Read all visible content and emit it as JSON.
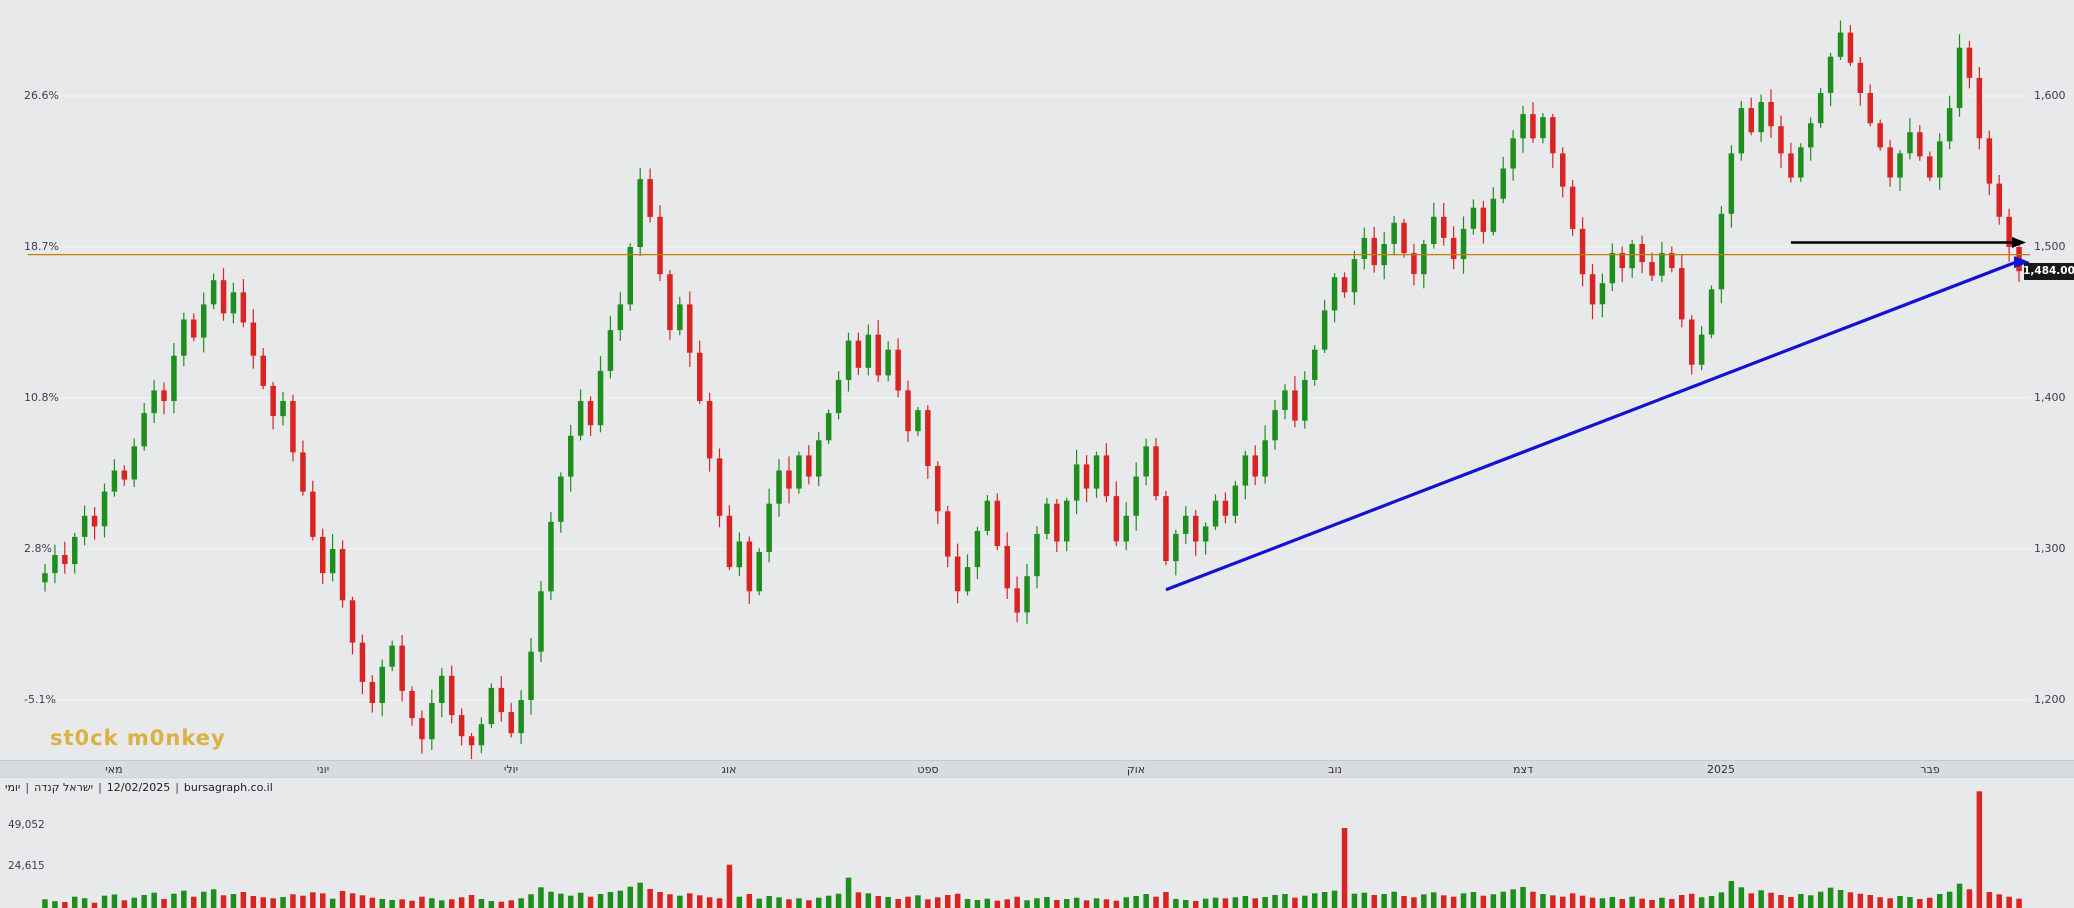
{
  "watermark": "st0ck m0nkey",
  "info_bar": {
    "parts": [
      "יומי",
      "ישראל קנדה",
      "12/02/2025",
      "bursagraph.co.il"
    ],
    "separator": "|"
  },
  "price_tag": {
    "value": "1,484.00"
  },
  "colors": {
    "up": "#1e8e1e",
    "down": "#d92424",
    "trendline": "#1212cf",
    "horizontal_line": "#bf7e10",
    "resistance_line": "#000000",
    "tag_bg": "#17181a",
    "tag_text": "#ffffff"
  },
  "chart_data": {
    "type": "candlestick",
    "symbol": "ישראל קנדה",
    "timeframe": "יומי",
    "date": "12/02/2025",
    "source": "bursagraph.co.il",
    "last_price": 1484.0,
    "price_axis_range": {
      "min": 1150,
      "max": 1660
    },
    "left_axis_ticks": [
      {
        "label": "26.6%",
        "price": 1600
      },
      {
        "label": "18.7%",
        "price": 1500
      },
      {
        "label": "10.8%",
        "price": 1400
      },
      {
        "label": "2.8%",
        "price": 1300
      },
      {
        "label": "-5.1%",
        "price": 1200
      }
    ],
    "right_axis_ticks": [
      {
        "label": "1,600",
        "price": 1600
      },
      {
        "label": "1,500",
        "price": 1500
      },
      {
        "label": "1,400",
        "price": 1400
      },
      {
        "label": "1,300",
        "price": 1300
      },
      {
        "label": "1,200",
        "price": 1200
      }
    ],
    "x_axis_labels": [
      {
        "label": "מאי",
        "day": 7
      },
      {
        "label": "יוני",
        "day": 28
      },
      {
        "label": "יולי",
        "day": 47
      },
      {
        "label": "אוג",
        "day": 69
      },
      {
        "label": "ספט",
        "day": 89
      },
      {
        "label": "אוק",
        "day": 110
      },
      {
        "label": "נוב",
        "day": 130
      },
      {
        "label": "דצמ",
        "day": 149
      },
      {
        "label": "2025",
        "day": 169
      },
      {
        "label": "פבר",
        "day": 190
      }
    ],
    "volume_axis_ticks": [
      {
        "label": "49,052",
        "value": 49052
      },
      {
        "label": "24,615",
        "value": 24615
      }
    ],
    "annotations": {
      "horizontal_line": {
        "price": 1495
      },
      "resistance_line": {
        "price": 1503,
        "from_day": 176
      },
      "trendline": {
        "from": {
          "day": 113,
          "price": 1273
        },
        "to_price": 1490
      }
    },
    "closes": [
      1284,
      1296,
      1290,
      1308,
      1322,
      1315,
      1338,
      1352,
      1346,
      1368,
      1390,
      1405,
      1398,
      1428,
      1452,
      1440,
      1462,
      1478,
      1456,
      1470,
      1450,
      1428,
      1408,
      1388,
      1398,
      1364,
      1338,
      1308,
      1284,
      1300,
      1266,
      1238,
      1212,
      1198,
      1222,
      1236,
      1206,
      1188,
      1174,
      1198,
      1216,
      1190,
      1176,
      1170,
      1184,
      1208,
      1192,
      1178,
      1200,
      1232,
      1272,
      1318,
      1348,
      1375,
      1398,
      1382,
      1418,
      1445,
      1462,
      1500,
      1545,
      1520,
      1482,
      1445,
      1462,
      1430,
      1398,
      1360,
      1322,
      1288,
      1305,
      1272,
      1298,
      1330,
      1352,
      1340,
      1362,
      1348,
      1372,
      1390,
      1412,
      1438,
      1420,
      1442,
      1415,
      1432,
      1405,
      1378,
      1392,
      1355,
      1325,
      1295,
      1272,
      1288,
      1312,
      1332,
      1302,
      1274,
      1258,
      1282,
      1310,
      1330,
      1305,
      1332,
      1356,
      1340,
      1362,
      1335,
      1305,
      1322,
      1348,
      1368,
      1335,
      1292,
      1310,
      1322,
      1305,
      1315,
      1332,
      1322,
      1342,
      1362,
      1348,
      1372,
      1392,
      1405,
      1385,
      1412,
      1432,
      1458,
      1480,
      1470,
      1492,
      1506,
      1488,
      1502,
      1516,
      1496,
      1482,
      1502,
      1520,
      1506,
      1492,
      1512,
      1526,
      1510,
      1532,
      1552,
      1572,
      1588,
      1572,
      1586,
      1562,
      1540,
      1512,
      1482,
      1462,
      1476,
      1496,
      1486,
      1502,
      1490,
      1481,
      1496,
      1486,
      1452,
      1422,
      1442,
      1472,
      1522,
      1562,
      1592,
      1576,
      1596,
      1580,
      1562,
      1546,
      1566,
      1582,
      1602,
      1626,
      1642,
      1622,
      1602,
      1582,
      1566,
      1546,
      1562,
      1576,
      1560,
      1546,
      1570,
      1592,
      1632,
      1612,
      1572,
      1542,
      1520,
      1500,
      1484
    ],
    "volumes": [
      5200,
      4100,
      3600,
      6800,
      5900,
      3200,
      7400,
      8100,
      4600,
      6200,
      7800,
      9200,
      5400,
      8600,
      10400,
      6800,
      9800,
      11200,
      7600,
      8400,
      9600,
      7200,
      6400,
      5800,
      6600,
      8200,
      7400,
      9400,
      8800,
      5600,
      10200,
      8800,
      7600,
      6200,
      5400,
      4800,
      5200,
      4400,
      6800,
      5800,
      4600,
      5200,
      6400,
      7800,
      5400,
      4200,
      3800,
      4600,
      5800,
      8200,
      12400,
      9800,
      8600,
      7400,
      9200,
      6800,
      8400,
      9600,
      10400,
      12800,
      15200,
      11400,
      9600,
      8200,
      7400,
      8800,
      7600,
      6400,
      5800,
      26000,
      6800,
      8400,
      5600,
      7200,
      6400,
      5200,
      5800,
      4600,
      6200,
      7400,
      8600,
      18200,
      9400,
      8800,
      7200,
      6600,
      5400,
      6800,
      7600,
      5200,
      6400,
      7800,
      8600,
      5400,
      4800,
      5600,
      4400,
      5200,
      6800,
      4600,
      5800,
      6600,
      4800,
      5400,
      6200,
      4600,
      5800,
      5200,
      4400,
      6400,
      7200,
      8400,
      6800,
      9600,
      5400,
      4800,
      4200,
      5600,
      6200,
      5800,
      6400,
      7200,
      5800,
      6600,
      7800,
      8400,
      6200,
      7400,
      8800,
      9600,
      10400,
      48000,
      8600,
      9200,
      7800,
      8400,
      9800,
      7200,
      6400,
      8200,
      9400,
      7600,
      6800,
      8800,
      9600,
      7400,
      8200,
      9800,
      11200,
      12600,
      9800,
      8400,
      7600,
      6800,
      8800,
      7400,
      6200,
      5800,
      6600,
      5400,
      6800,
      5600,
      4800,
      6200,
      5400,
      7800,
      8600,
      6400,
      7200,
      9400,
      16200,
      12400,
      8800,
      10600,
      9200,
      7800,
      6600,
      8400,
      7600,
      9800,
      12200,
      10800,
      9400,
      8600,
      7800,
      6400,
      5800,
      7200,
      6600,
      5400,
      6200,
      8400,
      9800,
      14600,
      11200,
      70000,
      9600,
      8200,
      6800,
      5600
    ]
  }
}
